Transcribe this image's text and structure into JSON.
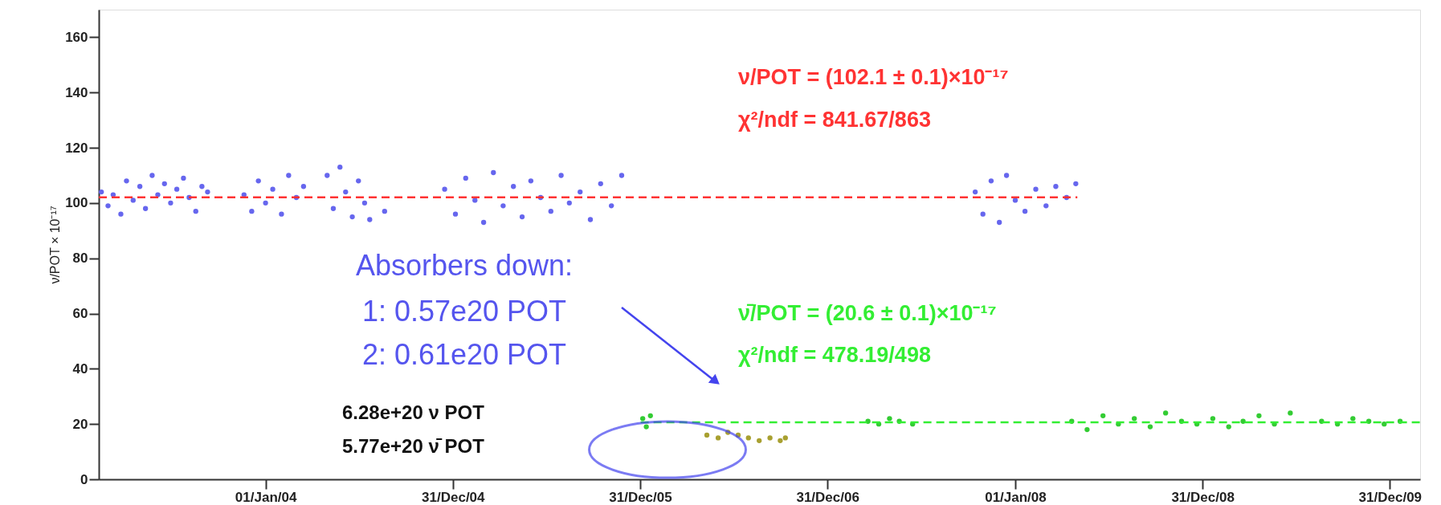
{
  "chart_data": {
    "type": "scatter",
    "ylabel": "ν/POT × 10⁻¹⁷",
    "xlim": [
      "2003-02-10",
      "2010-02-28"
    ],
    "xticks": [
      {
        "value": "2004-01-01",
        "label": "01/Jan/04"
      },
      {
        "value": "2004-12-31",
        "label": "31/Dec/04"
      },
      {
        "value": "2005-12-31",
        "label": "31/Dec/05"
      },
      {
        "value": "2006-12-31",
        "label": "31/Dec/06"
      },
      {
        "value": "2008-01-01",
        "label": "01/Jan/08"
      },
      {
        "value": "2008-12-31",
        "label": "31/Dec/08"
      },
      {
        "value": "2009-12-31",
        "label": "31/Dec/09"
      }
    ],
    "ylim": [
      0,
      170
    ],
    "yticks": [
      0,
      20,
      40,
      60,
      80,
      100,
      120,
      140,
      160
    ],
    "grid": false,
    "legend": false,
    "marker": "circle",
    "series": [
      {
        "color": "#6666ee",
        "x": [
          "2003-02-15",
          "2003-02-28",
          "2003-03-10",
          "2003-03-25",
          "2003-04-05",
          "2003-04-18",
          "2003-05-01",
          "2003-05-12",
          "2003-05-25",
          "2003-06-05",
          "2003-06-18",
          "2003-06-30",
          "2003-07-12",
          "2003-07-25",
          "2003-08-05",
          "2003-08-18",
          "2003-08-30",
          "2003-09-10",
          "2003-11-20",
          "2003-12-05",
          "2003-12-18",
          "2004-01-01",
          "2004-01-15",
          "2004-02-01",
          "2004-02-15",
          "2004-03-01",
          "2004-03-15",
          "2004-04-30",
          "2004-05-12",
          "2004-05-25",
          "2004-06-05",
          "2004-06-18",
          "2004-06-30",
          "2004-07-12",
          "2004-07-22",
          "2004-08-20",
          "2004-12-15",
          "2005-01-05",
          "2005-01-25",
          "2005-02-12",
          "2005-03-01",
          "2005-03-20",
          "2005-04-08",
          "2005-04-28",
          "2005-05-15",
          "2005-06-01",
          "2005-06-20",
          "2005-07-10",
          "2005-07-30",
          "2005-08-15",
          "2005-09-05",
          "2005-09-25",
          "2005-10-15",
          "2005-11-05",
          "2005-11-25",
          "2007-10-15",
          "2007-10-30",
          "2007-11-15",
          "2007-12-01",
          "2007-12-15",
          "2008-01-01",
          "2008-01-20",
          "2008-02-10",
          "2008-03-01",
          "2008-03-20",
          "2008-04-10",
          "2008-04-28"
        ],
        "values": [
          104,
          99,
          103,
          96,
          108,
          101,
          106,
          98,
          110,
          103,
          107,
          100,
          105,
          109,
          102,
          97,
          106,
          104,
          103,
          97,
          108,
          100,
          105,
          96,
          110,
          102,
          106,
          110,
          98,
          113,
          104,
          95,
          108,
          100,
          94,
          97,
          105,
          96,
          109,
          101,
          93,
          111,
          99,
          106,
          95,
          108,
          102,
          97,
          110,
          100,
          104,
          94,
          107,
          99,
          110,
          104,
          96,
          108,
          93,
          110,
          101,
          97,
          105,
          99,
          106,
          102,
          107
        ]
      },
      {
        "color": "#33cc33",
        "x": [
          "2006-01-05",
          "2006-01-12",
          "2006-01-20",
          "2007-03-20",
          "2007-04-10",
          "2007-05-01",
          "2007-05-20",
          "2007-06-15",
          "2008-04-20",
          "2008-05-20",
          "2008-06-20",
          "2008-07-20",
          "2008-08-20",
          "2008-09-20",
          "2008-10-20",
          "2008-11-20",
          "2008-12-20",
          "2009-01-20",
          "2009-02-20",
          "2009-03-20",
          "2009-04-20",
          "2009-05-20",
          "2009-06-20",
          "2009-08-20",
          "2009-09-20",
          "2009-10-20",
          "2009-11-20",
          "2009-12-20",
          "2010-01-20"
        ],
        "values": [
          22,
          19,
          23,
          21,
          20,
          22,
          21,
          20,
          21,
          18,
          23,
          20,
          22,
          19,
          24,
          21,
          20,
          22,
          19,
          21,
          23,
          20,
          24,
          21,
          20,
          22,
          21,
          20,
          21
        ]
      },
      {
        "color": "#a8a030",
        "x": [
          "2006-05-10",
          "2006-06-01",
          "2006-06-20",
          "2006-07-10",
          "2006-07-30",
          "2006-08-20",
          "2006-09-10",
          "2006-09-30",
          "2006-10-10"
        ],
        "values": [
          16,
          15,
          17,
          16,
          15,
          14,
          15,
          14,
          15
        ]
      },
      {
        "type": "line",
        "marker": "none",
        "line_style": "dashed",
        "color": "#ff3333",
        "x": [
          "2003-02-10",
          "2008-05-01"
        ],
        "values": [
          102.1,
          102.1
        ]
      },
      {
        "type": "line",
        "marker": "none",
        "line_style": "dashed",
        "color": "#33ee33",
        "x": [
          "2006-01-01",
          "2010-02-28"
        ],
        "values": [
          20.6,
          20.6
        ]
      }
    ],
    "annotations": [
      "ν/POT = (102.1 ±  0.1)×10⁻¹⁷",
      "χ²/ndf = 841.67/863",
      "ν̄/POT = (20.6 ±  0.1)×10⁻¹⁷",
      "χ²/ndf = 478.19/498",
      "Absorbers down:",
      "1: 0.57e20 POT",
      "2: 0.61e20 POT",
      "6.28e+20  ν POT",
      "5.77e+20  ν̄ POT"
    ]
  }
}
